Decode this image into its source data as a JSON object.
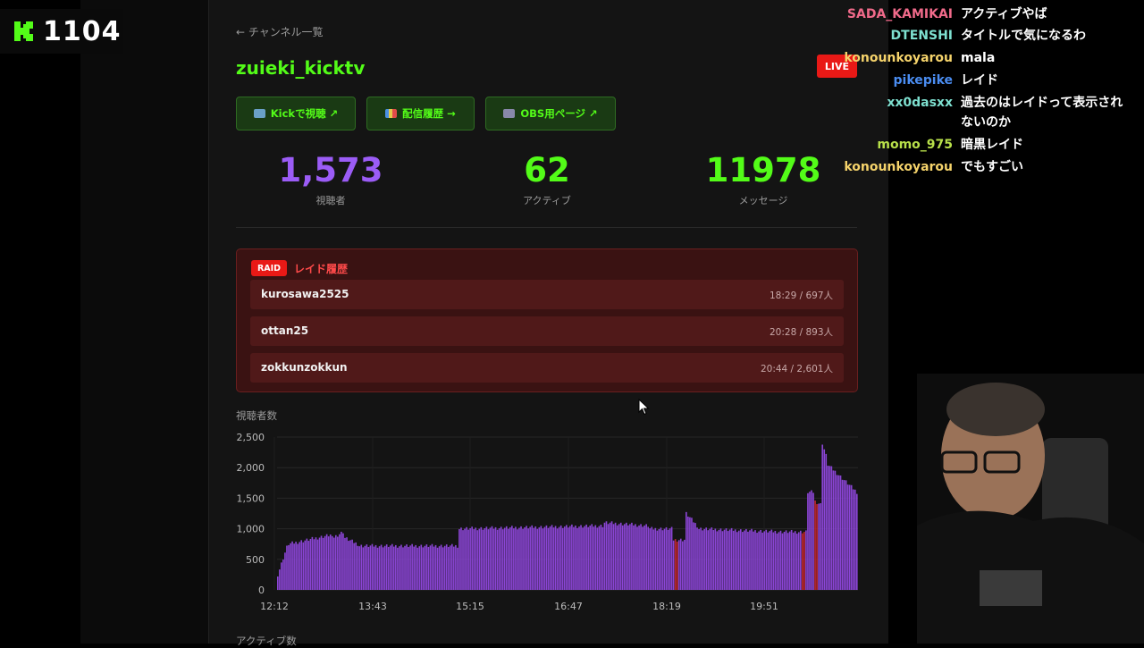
{
  "overlay": {
    "kick_count": "1104",
    "accent": "#53fc18"
  },
  "header": {
    "back_link": "← チャンネル一覧",
    "channel_name": "zuieki_kicktv",
    "live_badge": "LIVE"
  },
  "buttons": [
    {
      "label": "Kickで視聴 ↗",
      "icon": "tv-icon"
    },
    {
      "label": "配信履歴 →",
      "icon": "bar-chart-icon"
    },
    {
      "label": "OBS用ページ ↗",
      "icon": "clapper-icon"
    }
  ],
  "stats": [
    {
      "value": "1,573",
      "label": "視聴者",
      "color": "#9b5cf6"
    },
    {
      "value": "62",
      "label": "アクティブ",
      "color": "#53fc18"
    },
    {
      "value": "11978",
      "label": "メッセージ",
      "color": "#53fc18"
    }
  ],
  "raid": {
    "tag": "RAID",
    "title": "レイド履歴",
    "items": [
      {
        "name": "kurosawa2525",
        "meta": "18:29 / 697人"
      },
      {
        "name": "ottan25",
        "meta": "20:28 / 893人"
      },
      {
        "name": "zokkunzokkun",
        "meta": "20:44 / 2,601人"
      }
    ]
  },
  "chart_titles": {
    "viewers": "視聴者数",
    "active": "アクティブ数"
  },
  "chart_data": {
    "type": "bar",
    "y_ticks": [
      "2,500",
      "2,000",
      "1,500",
      "1,000",
      "500",
      "0"
    ],
    "x_ticks": [
      "12:12",
      "13:43",
      "15:15",
      "16:47",
      "18:19",
      "19:51"
    ],
    "ylim": [
      0,
      2500
    ],
    "grid": true,
    "bar_color": "#8b45d6",
    "highlight_color": "#c0262e",
    "segments": [
      {
        "from": 0,
        "to": 6,
        "start": 250,
        "end": 700
      },
      {
        "from": 6,
        "to": 30,
        "start": 750,
        "end": 900
      },
      {
        "from": 30,
        "to": 37,
        "start": 850,
        "end": 950
      },
      {
        "from": 37,
        "to": 45,
        "start": 850,
        "end": 750
      },
      {
        "from": 45,
        "to": 100,
        "start": 720,
        "end": 720
      },
      {
        "from": 100,
        "to": 180,
        "start": 1000,
        "end": 1050
      },
      {
        "from": 180,
        "to": 205,
        "start": 1100,
        "end": 1050
      },
      {
        "from": 205,
        "to": 218,
        "start": 1000,
        "end": 1000
      },
      {
        "from": 218,
        "to": 225,
        "start": 820,
        "end": 820
      },
      {
        "from": 225,
        "to": 232,
        "start": 1250,
        "end": 1050
      },
      {
        "from": 232,
        "to": 278,
        "start": 1000,
        "end": 950
      },
      {
        "from": 278,
        "to": 292,
        "start": 950,
        "end": 950
      },
      {
        "from": 292,
        "to": 296,
        "start": 1600,
        "end": 1600
      },
      {
        "from": 296,
        "to": 300,
        "start": 1450,
        "end": 1400
      },
      {
        "from": 300,
        "to": 303,
        "start": 2400,
        "end": 2200
      },
      {
        "from": 303,
        "to": 320,
        "start": 2050,
        "end": 1600
      }
    ],
    "total_bars": 320,
    "highlight_bars": [
      219,
      220,
      289,
      290,
      296,
      297
    ]
  },
  "chat": [
    {
      "user": "SADA_KAMIKAI",
      "color": "#f06a8a",
      "msg": "アクティブやば"
    },
    {
      "user": "DTENSHI",
      "color": "#7ee0d0",
      "msg": "タイトルで気になるわ"
    },
    {
      "user": "konounkoyarou",
      "color": "#f5d36b",
      "msg": "mala"
    },
    {
      "user": "pikepike",
      "color": "#4a8cf0",
      "msg": "レイド"
    },
    {
      "user": "xx0dasxx",
      "color": "#7ee0d0",
      "msg": "過去のはレイドって表示され"
    },
    {
      "user": "",
      "color": "#7ee0d0",
      "msg": "ないのか"
    },
    {
      "user": "momo_975",
      "color": "#b8e04a",
      "msg": "暗黒レイド"
    },
    {
      "user": "konounkoyarou",
      "color": "#f5d36b",
      "msg": "でもすごい"
    }
  ]
}
